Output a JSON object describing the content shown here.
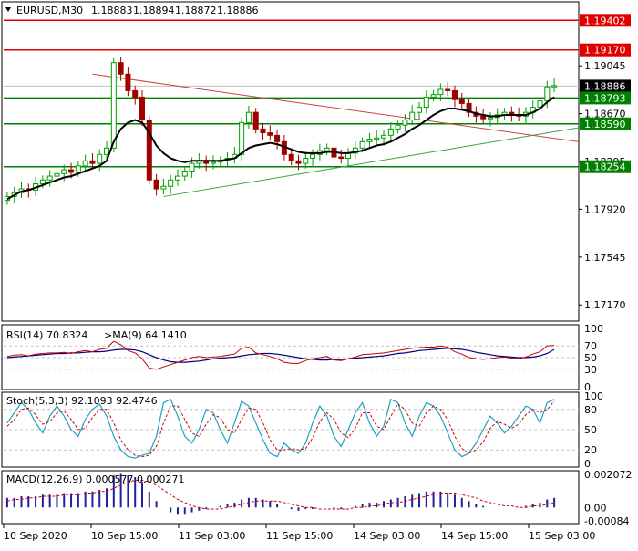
{
  "header": {
    "symbol": "EURUSD,M30",
    "open": "1.18883",
    "high": "1.18894",
    "low": "1.18872",
    "close": "1.18886"
  },
  "colors": {
    "bull_candle": "#00a000",
    "bear_candle": "#a00000",
    "ma_line": "#000000",
    "resistance": "#e00000",
    "support": "#008000",
    "trend_down": "#d04040",
    "trend_up": "#40a040",
    "current_price_bg": "#000000",
    "rsi_line": "#c00000",
    "rsi_ma": "#000080",
    "stoch_main": "#20a0c0",
    "stoch_signal": "#d00000",
    "macd_hist": "#2020a0",
    "macd_signal": "#d00000"
  },
  "chart_data": [
    {
      "type": "candlestick",
      "title": "EURUSD,M30",
      "ylim": [
        1.1705,
        1.1954
      ],
      "price_ticks": [
        "1.19402",
        "1.19170",
        "1.19045",
        "1.18886",
        "1.18793",
        "1.18670",
        "1.18590",
        "1.18295",
        "1.18254",
        "1.17920",
        "1.17545",
        "1.17170"
      ],
      "current_price": 1.18886,
      "resistance_levels": [
        1.19402,
        1.1917
      ],
      "support_levels": [
        1.18793,
        1.1859,
        1.18254
      ],
      "trendlines": [
        {
          "name": "descending",
          "from": [
            12,
            1.1898
          ],
          "to": [
            80,
            1.1845
          ]
        },
        {
          "name": "ascending",
          "from": [
            22,
            1.1802
          ],
          "to": [
            80,
            1.1856
          ]
        }
      ],
      "time_labels": [
        "10 Sep 2020",
        "10 Sep 15:00",
        "11 Sep 03:00",
        "11 Sep 15:00",
        "14 Sep 03:00",
        "14 Sep 15:00",
        "15 Sep 03:00"
      ],
      "close": [
        1.1802,
        1.1805,
        1.1808,
        1.1807,
        1.1812,
        1.1815,
        1.1818,
        1.182,
        1.1823,
        1.1821,
        1.1826,
        1.183,
        1.1828,
        1.1835,
        1.184,
        1.1907,
        1.1898,
        1.1885,
        1.188,
        1.1862,
        1.1815,
        1.1808,
        1.181,
        1.1815,
        1.1818,
        1.1822,
        1.1828,
        1.183,
        1.1828,
        1.1829,
        1.183,
        1.1832,
        1.1835,
        1.186,
        1.1868,
        1.1855,
        1.1852,
        1.185,
        1.1845,
        1.1835,
        1.183,
        1.1828,
        1.1832,
        1.1835,
        1.1838,
        1.184,
        1.1833,
        1.1832,
        1.1836,
        1.184,
        1.1845,
        1.1847,
        1.1848,
        1.185,
        1.1855,
        1.1858,
        1.1862,
        1.1868,
        1.1872,
        1.188,
        1.1882,
        1.1886,
        1.1885,
        1.1878,
        1.1875,
        1.1868,
        1.1865,
        1.1863,
        1.1864,
        1.1866,
        1.1868,
        1.1866,
        1.1865,
        1.1868,
        1.1872,
        1.1877,
        1.1888,
        1.1889
      ],
      "ma": [
        1.18,
        1.1803,
        1.1806,
        1.1807,
        1.1809,
        1.1811,
        1.1813,
        1.1815,
        1.1817,
        1.1818,
        1.182,
        1.1822,
        1.1824,
        1.1826,
        1.183,
        1.1845,
        1.1855,
        1.186,
        1.1862,
        1.186,
        1.1852,
        1.1842,
        1.1836,
        1.1832,
        1.183,
        1.1829,
        1.183,
        1.183,
        1.183,
        1.183,
        1.183,
        1.1831,
        1.1832,
        1.1836,
        1.184,
        1.1842,
        1.1843,
        1.1844,
        1.1843,
        1.1841,
        1.1839,
        1.1837,
        1.1836,
        1.1836,
        1.1836,
        1.1837,
        1.1837,
        1.1836,
        1.1836,
        1.1837,
        1.1838,
        1.184,
        1.1842,
        1.1843,
        1.1845,
        1.1848,
        1.1851,
        1.1855,
        1.1858,
        1.1862,
        1.1866,
        1.1869,
        1.1871,
        1.1871,
        1.187,
        1.1869,
        1.1867,
        1.1866,
        1.1865,
        1.1865,
        1.1866,
        1.1866,
        1.1866,
        1.1866,
        1.1868,
        1.1871,
        1.1876,
        1.188
      ]
    },
    {
      "type": "line",
      "title": "RSI(14) 70.8324",
      "label2": ">MA(9) 64.1410",
      "ylim": [
        0,
        100
      ],
      "levels": [
        "100",
        "70",
        "50",
        "30",
        "0"
      ],
      "rsi": [
        52,
        54,
        55,
        53,
        56,
        57,
        58,
        58,
        59,
        57,
        60,
        62,
        60,
        64,
        66,
        78,
        72,
        62,
        58,
        48,
        32,
        30,
        34,
        38,
        42,
        46,
        50,
        52,
        50,
        51,
        52,
        54,
        56,
        66,
        68,
        58,
        55,
        52,
        48,
        42,
        40,
        40,
        45,
        48,
        50,
        52,
        46,
        45,
        48,
        51,
        55,
        56,
        57,
        58,
        60,
        62,
        64,
        66,
        67,
        68,
        68,
        70,
        68,
        60,
        56,
        50,
        48,
        47,
        48,
        50,
        51,
        49,
        48,
        51,
        56,
        60,
        70,
        71
      ],
      "ma": [
        50,
        51,
        52,
        53,
        54,
        55,
        56,
        57,
        57,
        58,
        58,
        59,
        60,
        60,
        61,
        63,
        64,
        64,
        63,
        60,
        55,
        50,
        46,
        43,
        42,
        42,
        43,
        44,
        46,
        48,
        49,
        50,
        51,
        53,
        55,
        56,
        57,
        57,
        56,
        54,
        52,
        50,
        48,
        47,
        46,
        46,
        47,
        47,
        48,
        49,
        50,
        51,
        52,
        53,
        55,
        57,
        58,
        60,
        62,
        63,
        64,
        65,
        66,
        65,
        64,
        62,
        59,
        57,
        55,
        53,
        52,
        51,
        50,
        50,
        51,
        53,
        57,
        64
      ]
    },
    {
      "type": "line",
      "title": "Stoch(5,3,3) 92.1093 92.4746",
      "ylim": [
        0,
        100
      ],
      "levels": [
        "100",
        "80",
        "50",
        "20",
        "0"
      ],
      "main": [
        60,
        75,
        90,
        80,
        60,
        45,
        70,
        85,
        70,
        50,
        40,
        65,
        80,
        88,
        70,
        40,
        20,
        10,
        8,
        12,
        15,
        40,
        90,
        95,
        70,
        40,
        30,
        50,
        80,
        75,
        50,
        30,
        60,
        92,
        85,
        60,
        35,
        15,
        10,
        30,
        20,
        15,
        30,
        60,
        85,
        70,
        40,
        25,
        50,
        75,
        90,
        60,
        40,
        55,
        95,
        90,
        60,
        40,
        70,
        90,
        85,
        70,
        45,
        20,
        10,
        15,
        30,
        50,
        70,
        60,
        45,
        55,
        70,
        85,
        80,
        60,
        90,
        95
      ],
      "signal": [
        55,
        65,
        80,
        82,
        72,
        58,
        62,
        75,
        78,
        65,
        50,
        52,
        68,
        80,
        80,
        60,
        35,
        20,
        12,
        10,
        12,
        25,
        60,
        85,
        85,
        65,
        45,
        40,
        58,
        72,
        68,
        50,
        45,
        65,
        82,
        80,
        60,
        35,
        20,
        20,
        22,
        20,
        22,
        38,
        62,
        75,
        65,
        45,
        38,
        52,
        75,
        75,
        55,
        50,
        70,
        88,
        80,
        60,
        55,
        75,
        85,
        80,
        65,
        40,
        22,
        15,
        20,
        32,
        52,
        62,
        58,
        52,
        58,
        72,
        80,
        75,
        80,
        92
      ]
    },
    {
      "type": "bar",
      "title": "MACD(12,26,9) 0.000577 0.000271",
      "ylim": [
        -0.00084,
        0.002072
      ],
      "ticks": [
        "0.002072",
        "0.00",
        "-0.00084"
      ],
      "hist": [
        0.0006,
        0.0006,
        0.0007,
        0.0007,
        0.0007,
        0.0008,
        0.0008,
        0.0008,
        0.0009,
        0.0009,
        0.0009,
        0.001,
        0.001,
        0.0011,
        0.0012,
        0.002,
        0.0021,
        0.002,
        0.0019,
        0.0016,
        0.001,
        0.0004,
        0.0,
        -0.0003,
        -0.0004,
        -0.0004,
        -0.0003,
        -0.0002,
        -0.0001,
        0.0,
        0.0001,
        0.0002,
        0.0003,
        0.0005,
        0.0006,
        0.0006,
        0.0005,
        0.0004,
        0.0002,
        0.0,
        -0.0001,
        -0.0002,
        -0.0001,
        -0.0001,
        0.0,
        0.0,
        -0.0001,
        -0.0001,
        0.0,
        0.0001,
        0.0002,
        0.0003,
        0.0003,
        0.0004,
        0.0005,
        0.0006,
        0.0007,
        0.0008,
        0.0009,
        0.001,
        0.001,
        0.001,
        0.0009,
        0.0008,
        0.0006,
        0.0004,
        0.0002,
        0.0001,
        0.0,
        0.0,
        0.0,
        0.0,
        0.0,
        0.0001,
        0.0002,
        0.0003,
        0.0005,
        0.0006
      ],
      "signal": [
        0.0004,
        0.0005,
        0.0005,
        0.0006,
        0.0006,
        0.0007,
        0.0007,
        0.0007,
        0.0008,
        0.0008,
        0.0008,
        0.0009,
        0.0009,
        0.001,
        0.001,
        0.0012,
        0.0014,
        0.0016,
        0.0017,
        0.0017,
        0.0016,
        0.0014,
        0.0011,
        0.0008,
        0.0005,
        0.0003,
        0.0001,
        0.0,
        -0.0001,
        -0.0001,
        -0.0001,
        0.0,
        0.0001,
        0.0002,
        0.0003,
        0.0004,
        0.0004,
        0.0004,
        0.0004,
        0.0003,
        0.0002,
        0.0001,
        0.0,
        0.0,
        -0.0001,
        -0.0001,
        -0.0001,
        -0.0001,
        -0.0001,
        0.0,
        0.0,
        0.0001,
        0.0001,
        0.0002,
        0.0003,
        0.0003,
        0.0004,
        0.0005,
        0.0006,
        0.0007,
        0.0008,
        0.0009,
        0.0009,
        0.0009,
        0.0008,
        0.0007,
        0.0006,
        0.0004,
        0.0003,
        0.0002,
        0.0001,
        0.0001,
        0.0,
        0.0,
        0.0001,
        0.0001,
        0.0002,
        0.0003
      ]
    }
  ]
}
